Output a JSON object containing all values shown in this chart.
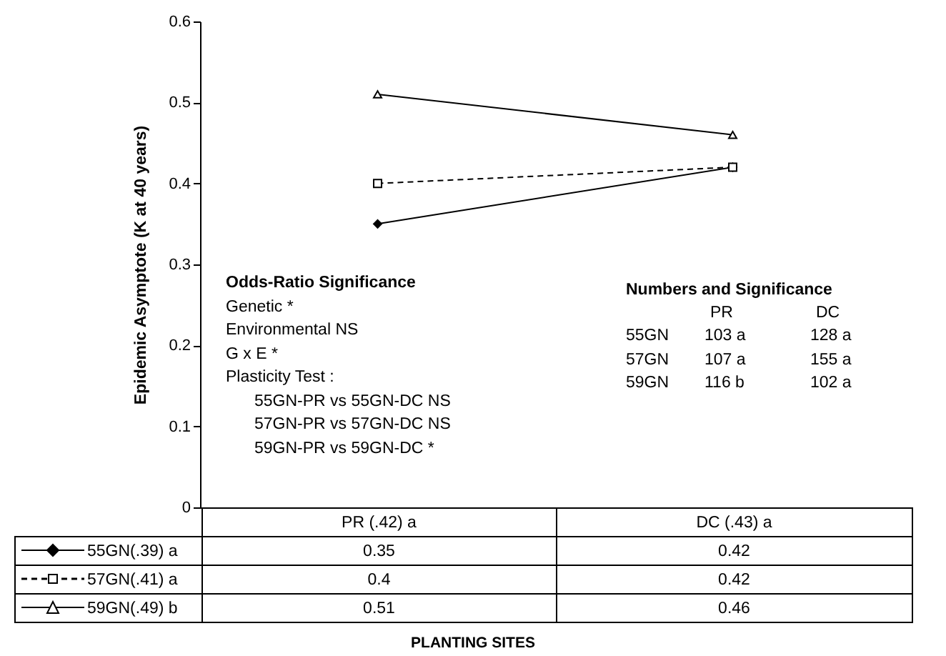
{
  "chart_data": {
    "type": "line",
    "ylabel": "Epidemic Asymptote (K at 40 years)",
    "categories": [
      "PR (.42) a",
      "DC (.43) a"
    ],
    "series": [
      {
        "name": "55GN(.39) a",
        "color": "#000000",
        "values": [
          0.35,
          0.42
        ],
        "marker": "diamond",
        "line_style": "solid"
      },
      {
        "name": "57GN(.41) a",
        "color": "#000000",
        "values": [
          0.4,
          0.42
        ],
        "marker": "square",
        "line_style": "dashed"
      },
      {
        "name": "59GN(.49) b",
        "color": "#000000",
        "values": [
          0.51,
          0.46
        ],
        "marker": "triangle",
        "line_style": "solid"
      }
    ],
    "ylim": [
      0,
      0.6
    ],
    "yticks": [
      0,
      0.1,
      0.2,
      0.3,
      0.4,
      0.5,
      0.6
    ],
    "data_labels": true,
    "legend": "bottom left",
    "annotations": [
      "Odds-Ratio Significance",
      "Genetic  *",
      "Environmental  NS",
      "G x E *",
      "Plasticity Test :",
      "55GN-PR vs 55GN-DC NS",
      "57GN-PR vs 57GN-DC NS",
      "59GN-PR vs 59GN-DC *",
      "Numbers and Significance",
      "PR",
      "DC",
      "55GN",
      "103 a",
      "128 a",
      "57GN",
      "107 a",
      "155 a",
      "59GN",
      "116 b",
      "102 a",
      "PLANTING SITES"
    ]
  }
}
